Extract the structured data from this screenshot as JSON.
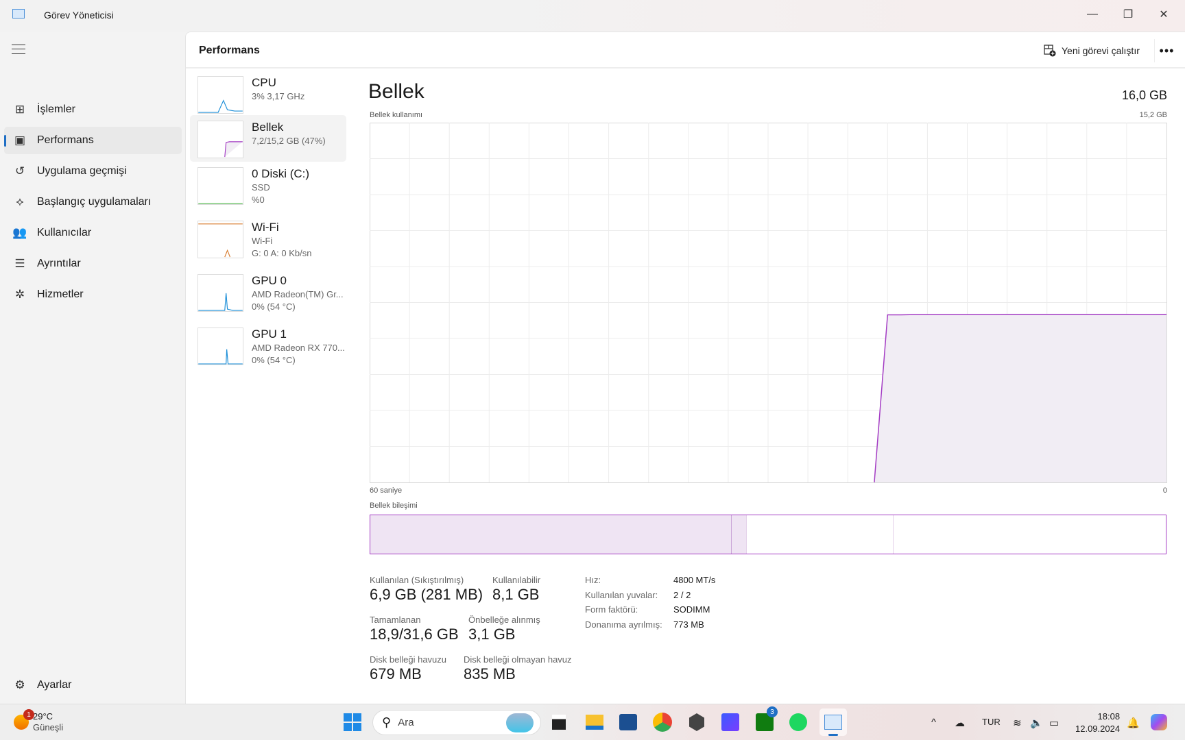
{
  "window": {
    "title": "Görev Yöneticisi",
    "minimize": "—",
    "maximize": "❐",
    "close": "✕"
  },
  "sidebar": {
    "items": [
      {
        "label": "İşlemler",
        "icon": "processes-icon",
        "glyph": "⊞"
      },
      {
        "label": "Performans",
        "icon": "performance-icon",
        "glyph": "▣",
        "active": true
      },
      {
        "label": "Uygulama geçmişi",
        "icon": "history-icon",
        "glyph": "↺"
      },
      {
        "label": "Başlangıç uygulamaları",
        "icon": "startup-icon",
        "glyph": "⟡"
      },
      {
        "label": "Kullanıcılar",
        "icon": "users-icon",
        "glyph": "👥"
      },
      {
        "label": "Ayrıntılar",
        "icon": "details-icon",
        "glyph": "☰"
      },
      {
        "label": "Hizmetler",
        "icon": "services-icon",
        "glyph": "✲"
      }
    ],
    "settings": {
      "label": "Ayarlar",
      "glyph": "⚙"
    }
  },
  "header": {
    "title": "Performans",
    "run_task": "Yeni görevi çalıştır",
    "more": "•••"
  },
  "devices": [
    {
      "name": "CPU",
      "lines": [
        "3%  3,17 GHz"
      ],
      "color": "#1d8fd8"
    },
    {
      "name": "Bellek",
      "lines": [
        "7,2/15,2 GB (47%)"
      ],
      "color": "#a43cc4",
      "active": true
    },
    {
      "name": "0 Diski (C:)",
      "lines": [
        "SSD",
        "%0"
      ],
      "color": "#4cb648"
    },
    {
      "name": "Wi-Fi",
      "lines": [
        "Wi-Fi",
        "G: 0  A: 0 Kb/sn"
      ],
      "color": "#d87b2d"
    },
    {
      "name": "GPU 0",
      "lines": [
        "AMD Radeon(TM) Gr...",
        "0%  (54 °C)"
      ],
      "color": "#1d8fd8"
    },
    {
      "name": "GPU 1",
      "lines": [
        "AMD Radeon RX 770...",
        "0%  (54 °C)"
      ],
      "color": "#1d8fd8"
    }
  ],
  "memory": {
    "title": "Bellek",
    "total": "16,0 GB",
    "usage_label": "Bellek kullanımı",
    "usage_max": "15,2 GB",
    "time_left": "60 saniye",
    "time_right": "0",
    "composition_label": "Bellek bileşimi",
    "graph": {
      "max_gb": 15.2,
      "window_seconds": 60,
      "color": "#a43cc4",
      "fill": "#f1edf4",
      "samples_gb_from_22s_ago_to_now": [
        0,
        7.08,
        7.08,
        7.09,
        7.09,
        7.09,
        7.09,
        7.09,
        7.09,
        7.09,
        7.1,
        7.1,
        7.1,
        7.1,
        7.1,
        7.1,
        7.1,
        7.1,
        7.1,
        7.1,
        7.09,
        7.09,
        7.1
      ]
    },
    "composition_gb": [
      {
        "name": "in_use",
        "value": 6.9,
        "fill": "#efe4f3"
      },
      {
        "name": "modified",
        "value": 0.3,
        "fill": "#efe4f3"
      },
      {
        "name": "standby",
        "value": 2.8,
        "fill": "#ffffff"
      },
      {
        "name": "free",
        "value": 5.2,
        "fill": "#ffffff"
      }
    ],
    "stats": [
      {
        "label": "Kullanılan (Sıkıştırılmış)",
        "value": "6,9 GB (281 MB)"
      },
      {
        "label": "Kullanılabilir",
        "value": "8,1 GB"
      },
      {
        "label": "Tamamlanan",
        "value": "18,9/31,6 GB"
      },
      {
        "label": "Önbelleğe alınmış",
        "value": "3,1 GB"
      },
      {
        "label": "Disk belleği havuzu",
        "value": "679 MB"
      },
      {
        "label": "Disk belleği olmayan havuz",
        "value": "835 MB"
      }
    ],
    "details": [
      {
        "label": "Hız:",
        "value": "4800 MT/s"
      },
      {
        "label": "Kullanılan yuvalar:",
        "value": "2 / 2"
      },
      {
        "label": "Form faktörü:",
        "value": "SODIMM"
      },
      {
        "label": "Donanıma ayrılmış:",
        "value": "773 MB"
      }
    ]
  },
  "taskbar": {
    "weather": {
      "temp": "29°C",
      "desc": "Güneşli",
      "badge": "1"
    },
    "search_placeholder": "Ara",
    "xbox_badge": "3",
    "language": "TUR",
    "time": "18:08",
    "date": "12.09.2024"
  }
}
